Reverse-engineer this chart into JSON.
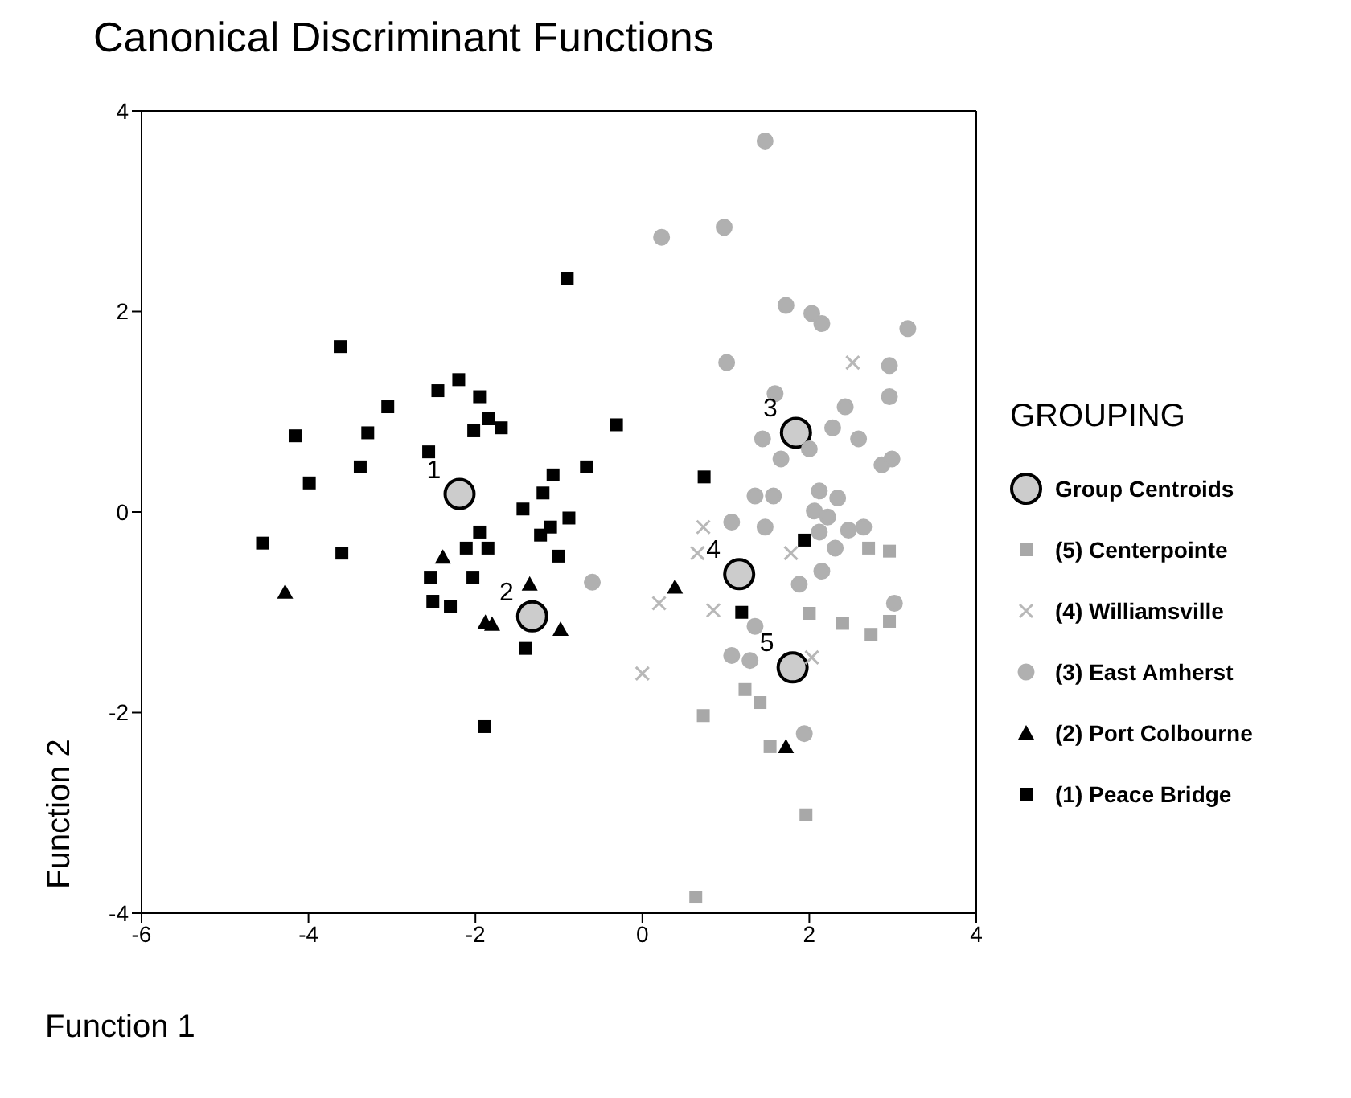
{
  "chart_data": {
    "type": "scatter",
    "title": "Canonical Discriminant Functions",
    "xlabel": "Function 1",
    "ylabel": "Function 2",
    "legend_title": "GROUPING",
    "legend": "right",
    "xlim": [
      -6,
      4
    ],
    "xticks": [
      -6,
      -4,
      -2,
      0,
      2,
      4
    ],
    "ylim": [
      -4,
      4
    ],
    "yticks": [
      -4,
      -2,
      0,
      2,
      4
    ],
    "grid": false,
    "series": [
      {
        "name": "Group Centroids",
        "color": "#000000",
        "marker": "circle",
        "x": [
          -2.19,
          -1.32,
          1.84,
          1.16,
          1.8
        ],
        "values": [
          0.18,
          -1.04,
          0.79,
          -0.62,
          -1.55
        ]
      },
      {
        "name": "(5) Centerpointe",
        "color": "#a8a8a8",
        "marker": "square",
        "x": [
          2.96,
          2.71,
          2.0,
          2.4,
          2.74,
          2.96,
          1.23,
          1.41,
          0.73,
          1.53,
          1.96,
          0.64
        ],
        "values": [
          -0.39,
          -0.36,
          -1.01,
          -1.11,
          -1.22,
          -1.09,
          -1.77,
          -1.9,
          -2.03,
          -2.34,
          -3.02,
          -3.84
        ]
      },
      {
        "name": "(4) Williamsville",
        "color": "#b8b8b8",
        "marker": "cross",
        "x": [
          0.73,
          0.66,
          0.2,
          0.85,
          1.78,
          0.0,
          2.52,
          2.03
        ],
        "values": [
          -0.15,
          -0.41,
          -0.91,
          -0.98,
          -0.41,
          -1.61,
          1.49,
          -1.45
        ]
      },
      {
        "name": "(3) East Amherst",
        "color": "#b0b0b0",
        "marker": "circle",
        "x": [
          1.47,
          0.23,
          0.98,
          1.72,
          2.03,
          2.15,
          3.18,
          2.96,
          1.01,
          2.96,
          1.59,
          2.43,
          1.44,
          1.66,
          2.28,
          2.59,
          2.0,
          2.87,
          2.99,
          1.35,
          1.57,
          2.12,
          2.34,
          2.06,
          2.22,
          1.07,
          1.47,
          2.12,
          2.47,
          2.65,
          2.31,
          1.88,
          2.15,
          -0.6,
          1.35,
          3.02,
          1.07,
          1.29,
          1.94
        ],
        "values": [
          3.7,
          2.74,
          2.84,
          2.06,
          1.98,
          1.88,
          1.83,
          1.46,
          1.49,
          1.15,
          1.18,
          1.05,
          0.73,
          0.53,
          0.84,
          0.73,
          0.63,
          0.47,
          0.53,
          0.16,
          0.16,
          0.21,
          0.14,
          0.01,
          -0.05,
          -0.1,
          -0.15,
          -0.2,
          -0.18,
          -0.15,
          -0.36,
          -0.72,
          -0.59,
          -0.7,
          -1.14,
          -0.91,
          -1.43,
          -1.48,
          -2.21
        ]
      },
      {
        "name": "(2) Port Colbourne",
        "color": "#000000",
        "marker": "triangle",
        "x": [
          -4.28,
          -2.39,
          -1.88,
          -1.8,
          -1.35,
          -0.98,
          0.39,
          1.72
        ],
        "values": [
          -0.8,
          -0.45,
          -1.1,
          -1.12,
          -0.72,
          -1.17,
          -0.75,
          -2.34
        ]
      },
      {
        "name": "(1) Peace Bridge",
        "color": "#000000",
        "marker": "square",
        "x": [
          -3.62,
          -2.45,
          -2.2,
          -1.95,
          -3.05,
          -4.16,
          -3.29,
          -2.02,
          -1.84,
          -1.69,
          -2.56,
          -3.38,
          -3.99,
          -4.55,
          -3.6,
          -1.95,
          -2.11,
          -1.85,
          -2.54,
          -2.03,
          -2.51,
          -2.3,
          -1.4,
          -1.89,
          -1.07,
          -1.19,
          -1.43,
          -1.22,
          -0.9,
          -0.31,
          -0.67,
          -0.88,
          -1.1,
          -1.0,
          0.74,
          1.94,
          1.19
        ],
        "values": [
          1.65,
          1.21,
          1.32,
          1.15,
          1.05,
          0.76,
          0.79,
          0.81,
          0.93,
          0.84,
          0.6,
          0.45,
          0.29,
          -0.31,
          -0.41,
          -0.2,
          -0.36,
          -0.36,
          -0.65,
          -0.65,
          -0.89,
          -0.94,
          -1.36,
          -2.14,
          0.37,
          0.19,
          0.03,
          -0.23,
          2.33,
          0.87,
          0.45,
          -0.06,
          -0.15,
          -0.44,
          0.35,
          -0.28,
          -1.0
        ]
      }
    ],
    "annotations": [
      {
        "text": "1",
        "x": -2.19,
        "y": 0.18
      },
      {
        "text": "2",
        "x": -1.32,
        "y": -1.04
      },
      {
        "text": "3",
        "x": 1.84,
        "y": 0.79
      },
      {
        "text": "4",
        "x": 1.16,
        "y": -0.62
      },
      {
        "text": "5",
        "x": 1.8,
        "y": -1.55
      }
    ]
  }
}
